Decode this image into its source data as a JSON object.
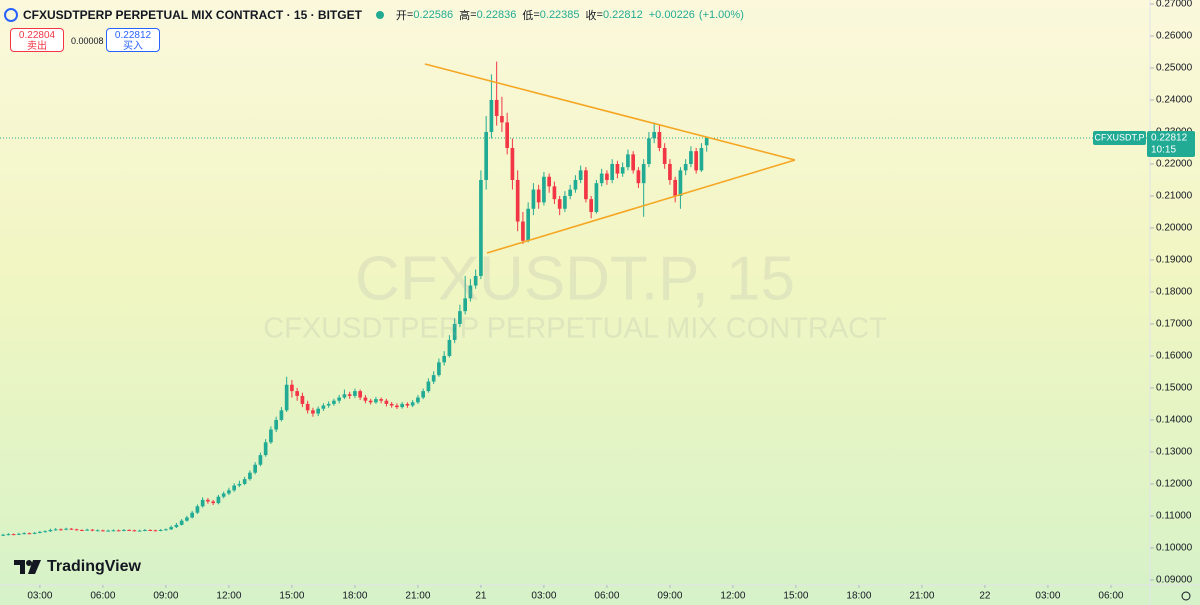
{
  "chart_data": {
    "type": "candlestick",
    "title": "CFXUSDTPERP PERPETUAL MIX CONTRACT · 15 · BITGET",
    "ohlc_header": {
      "open_label": "开",
      "open": 0.22586,
      "high_label": "高",
      "high": 0.22836,
      "low_label": "低",
      "low": 0.22385,
      "close_label": "收",
      "close": 0.22812,
      "change": "+0.00226",
      "change_pct": "(+1.00%)"
    },
    "trade": {
      "sell": 0.22804,
      "sell_label": "卖出",
      "spread": 8e-05,
      "buy": 0.22812,
      "buy_label": "买入"
    },
    "watermark": "CFXUSDT.P, 15",
    "watermark_sub": "CFXUSDTPERP PERPETUAL MIX CONTRACT",
    "price_tag": {
      "symbol": "CFXUSDT.P",
      "price": 0.22812,
      "countdown": "10:15"
    },
    "logo": "TradingView",
    "up_color": "#22ab94",
    "down_color": "#f23645",
    "x": [
      1.25,
      1.5,
      1.75,
      2,
      2.25,
      2.5,
      2.75,
      3,
      3.25,
      3.5,
      3.75,
      4,
      4.25,
      4.5,
      4.75,
      5,
      5.25,
      5.5,
      5.75,
      6,
      6.25,
      6.5,
      6.75,
      7,
      7.25,
      7.5,
      7.75,
      8,
      8.25,
      8.5,
      8.75,
      9,
      9.25,
      9.5,
      9.75,
      10,
      10.25,
      10.5,
      10.75,
      11,
      11.25,
      11.5,
      11.75,
      12,
      12.25,
      12.5,
      12.75,
      13,
      13.25,
      13.5,
      13.75,
      14,
      14.25,
      14.5,
      14.75,
      15,
      15.25,
      15.5,
      15.75,
      16,
      16.25,
      16.5,
      16.75,
      17,
      17.25,
      17.5,
      17.75,
      18,
      18.25,
      18.5,
      18.75,
      19,
      19.25,
      19.5,
      19.75,
      20,
      20.25,
      20.5,
      20.75,
      21,
      21.25,
      21.5,
      21.75,
      22,
      22.25,
      22.5,
      22.75,
      23,
      23.25,
      23.5,
      23.75,
      24,
      24.25,
      24.5,
      24.75,
      25,
      25.25,
      25.5,
      25.75,
      26,
      26.25,
      26.5,
      26.75,
      27,
      27.25,
      27.5,
      27.75,
      28,
      28.25,
      28.5,
      28.75,
      29,
      29.25,
      29.5,
      29.75,
      30,
      30.25,
      30.5,
      30.75,
      31,
      31.25,
      31.5,
      31.75,
      32,
      32.25,
      32.5,
      32.75,
      33,
      33.25,
      33.5,
      33.75,
      34,
      34.25,
      34.5,
      34.75
    ],
    "open": [
      0.104,
      0.1041,
      0.1043,
      0.1042,
      0.1044,
      0.1046,
      0.1045,
      0.1047,
      0.105,
      0.1052,
      0.1056,
      0.1058,
      0.1057,
      0.106,
      0.1058,
      0.1056,
      0.1055,
      0.1057,
      0.1054,
      0.1055,
      0.1053,
      0.1054,
      0.1055,
      0.1054,
      0.1056,
      0.1055,
      0.1053,
      0.1054,
      0.1056,
      0.1055,
      0.1054,
      0.1056,
      0.1058,
      0.1065,
      0.1072,
      0.1085,
      0.1095,
      0.111,
      0.113,
      0.115,
      0.1145,
      0.114,
      0.116,
      0.117,
      0.118,
      0.1195,
      0.12,
      0.1215,
      0.1235,
      0.126,
      0.129,
      0.133,
      0.137,
      0.14,
      0.143,
      0.151,
      0.149,
      0.1475,
      0.145,
      0.143,
      0.142,
      0.1435,
      0.1445,
      0.145,
      0.146,
      0.147,
      0.148,
      0.1475,
      0.149,
      0.147,
      0.146,
      0.1455,
      0.1465,
      0.146,
      0.145,
      0.1445,
      0.144,
      0.145,
      0.1445,
      0.1455,
      0.147,
      0.149,
      0.152,
      0.154,
      0.158,
      0.16,
      0.165,
      0.17,
      0.174,
      0.178,
      0.182,
      0.185,
      0.215,
      0.23,
      0.24,
      0.235,
      0.233,
      0.225,
      0.215,
      0.202,
      0.196,
      0.206,
      0.212,
      0.208,
      0.216,
      0.213,
      0.209,
      0.206,
      0.21,
      0.212,
      0.215,
      0.218,
      0.209,
      0.205,
      0.214,
      0.217,
      0.215,
      0.22,
      0.217,
      0.219,
      0.223,
      0.218,
      0.214,
      0.22,
      0.228,
      0.23,
      0.225,
      0.22,
      0.215,
      0.21,
      0.218,
      0.22,
      0.224,
      0.218,
      0.22586
    ],
    "high": [
      0.1044,
      0.1046,
      0.1045,
      0.1047,
      0.1049,
      0.1048,
      0.105,
      0.1053,
      0.1055,
      0.106,
      0.1062,
      0.1061,
      0.1063,
      0.1062,
      0.106,
      0.1058,
      0.106,
      0.1059,
      0.1058,
      0.1057,
      0.1057,
      0.1058,
      0.1057,
      0.1059,
      0.1058,
      0.1057,
      0.1057,
      0.1059,
      0.1058,
      0.1057,
      0.1059,
      0.1061,
      0.107,
      0.1078,
      0.109,
      0.11,
      0.1116,
      0.1136,
      0.1158,
      0.1156,
      0.115,
      0.1166,
      0.1176,
      0.1188,
      0.1202,
      0.121,
      0.1222,
      0.1242,
      0.1268,
      0.1298,
      0.134,
      0.138,
      0.141,
      0.144,
      0.1535,
      0.1525,
      0.15,
      0.1485,
      0.146,
      0.1438,
      0.1442,
      0.1452,
      0.1458,
      0.1466,
      0.1478,
      0.1495,
      0.1488,
      0.1498,
      0.1495,
      0.1478,
      0.1466,
      0.1472,
      0.147,
      0.1466,
      0.1456,
      0.1452,
      0.1456,
      0.1455,
      0.1462,
      0.1478,
      0.1498,
      0.153,
      0.1552,
      0.1592,
      0.1615,
      0.1665,
      0.1718,
      0.176,
      0.185,
      0.184,
      0.187,
      0.218,
      0.235,
      0.248,
      0.252,
      0.241,
      0.236,
      0.228,
      0.218,
      0.205,
      0.208,
      0.214,
      0.2135,
      0.2175,
      0.217,
      0.2145,
      0.21,
      0.2115,
      0.2135,
      0.2165,
      0.2195,
      0.219,
      0.21,
      0.215,
      0.2185,
      0.218,
      0.2215,
      0.221,
      0.2205,
      0.2245,
      0.224,
      0.219,
      0.2215,
      0.23,
      0.233,
      0.232,
      0.2265,
      0.2215,
      0.216,
      0.219,
      0.2215,
      0.2255,
      0.225,
      0.2265,
      0.22836
    ],
    "low": [
      0.1037,
      0.1039,
      0.104,
      0.104,
      0.1042,
      0.1043,
      0.1043,
      0.1045,
      0.1048,
      0.105,
      0.1054,
      0.1054,
      0.1055,
      0.1056,
      0.1054,
      0.1053,
      0.1053,
      0.1052,
      0.1052,
      0.1051,
      0.1051,
      0.1052,
      0.1052,
      0.1052,
      0.1053,
      0.1051,
      0.1051,
      0.1052,
      0.1053,
      0.1052,
      0.1052,
      0.1054,
      0.1056,
      0.1062,
      0.107,
      0.1082,
      0.1092,
      0.1106,
      0.1126,
      0.1138,
      0.1134,
      0.1136,
      0.1155,
      0.1165,
      0.1175,
      0.119,
      0.1196,
      0.121,
      0.123,
      0.1255,
      0.1285,
      0.1325,
      0.1362,
      0.1395,
      0.1425,
      0.147,
      0.146,
      0.144,
      0.142,
      0.141,
      0.1412,
      0.1428,
      0.1438,
      0.1444,
      0.1452,
      0.1465,
      0.1466,
      0.1468,
      0.1462,
      0.1452,
      0.1448,
      0.145,
      0.1452,
      0.1442,
      0.1438,
      0.1434,
      0.1435,
      0.1438,
      0.144,
      0.145,
      0.1465,
      0.1485,
      0.1512,
      0.1535,
      0.157,
      0.1595,
      0.164,
      0.169,
      0.173,
      0.177,
      0.181,
      0.184,
      0.212,
      0.228,
      0.232,
      0.23,
      0.223,
      0.212,
      0.199,
      0.195,
      0.1955,
      0.204,
      0.206,
      0.207,
      0.211,
      0.2075,
      0.204,
      0.205,
      0.209,
      0.211,
      0.214,
      0.208,
      0.203,
      0.2045,
      0.213,
      0.2135,
      0.214,
      0.2155,
      0.216,
      0.218,
      0.217,
      0.2125,
      0.2035,
      0.219,
      0.2265,
      0.224,
      0.2185,
      0.2135,
      0.208,
      0.206,
      0.2165,
      0.219,
      0.217,
      0.2175,
      0.22385
    ],
    "close": [
      0.1041,
      0.1043,
      0.1042,
      0.1044,
      0.1046,
      0.1045,
      0.1047,
      0.105,
      0.1052,
      0.1056,
      0.1058,
      0.1057,
      0.106,
      0.1058,
      0.1056,
      0.1055,
      0.1057,
      0.1054,
      0.1055,
      0.1053,
      0.1054,
      0.1055,
      0.1054,
      0.1056,
      0.1055,
      0.1053,
      0.1054,
      0.1056,
      0.1055,
      0.1054,
      0.1056,
      0.1058,
      0.1065,
      0.1072,
      0.1085,
      0.1095,
      0.111,
      0.113,
      0.115,
      0.1145,
      0.114,
      0.116,
      0.117,
      0.118,
      0.1195,
      0.12,
      0.1215,
      0.1235,
      0.126,
      0.129,
      0.133,
      0.137,
      0.14,
      0.143,
      0.151,
      0.149,
      0.1475,
      0.145,
      0.143,
      0.142,
      0.1435,
      0.1445,
      0.145,
      0.146,
      0.147,
      0.148,
      0.1475,
      0.149,
      0.147,
      0.146,
      0.1455,
      0.1465,
      0.146,
      0.145,
      0.1445,
      0.144,
      0.145,
      0.1445,
      0.1455,
      0.147,
      0.149,
      0.152,
      0.154,
      0.158,
      0.16,
      0.165,
      0.17,
      0.174,
      0.178,
      0.182,
      0.185,
      0.215,
      0.23,
      0.24,
      0.235,
      0.233,
      0.225,
      0.215,
      0.202,
      0.196,
      0.206,
      0.212,
      0.208,
      0.216,
      0.213,
      0.209,
      0.206,
      0.21,
      0.212,
      0.215,
      0.218,
      0.209,
      0.205,
      0.214,
      0.217,
      0.215,
      0.22,
      0.217,
      0.219,
      0.223,
      0.218,
      0.214,
      0.22,
      0.228,
      0.23,
      0.225,
      0.22,
      0.215,
      0.21,
      0.218,
      0.22,
      0.224,
      0.218,
      0.225,
      0.22812
    ],
    "xlim": [
      1.1,
      55.86
    ],
    "xticks": [
      {
        "value": 3,
        "label": "03:00"
      },
      {
        "value": 6,
        "label": "06:00"
      },
      {
        "value": 9,
        "label": "09:00"
      },
      {
        "value": 12,
        "label": "12:00"
      },
      {
        "value": 15,
        "label": "15:00"
      },
      {
        "value": 18,
        "label": "18:00"
      },
      {
        "value": 21,
        "label": "21:00"
      },
      {
        "value": 24,
        "label": "21"
      },
      {
        "value": 27,
        "label": "03:00"
      },
      {
        "value": 30,
        "label": "06:00"
      },
      {
        "value": 33,
        "label": "09:00"
      },
      {
        "value": 36,
        "label": "12:00"
      },
      {
        "value": 39,
        "label": "15:00"
      },
      {
        "value": 42,
        "label": "18:00"
      },
      {
        "value": 45,
        "label": "21:00"
      },
      {
        "value": 48,
        "label": "22"
      },
      {
        "value": 51,
        "label": "03:00"
      },
      {
        "value": 54,
        "label": "06:00"
      }
    ],
    "ylim": [
      0.0884,
      0.27125
    ],
    "yticks": [
      {
        "value": 0.09,
        "label": "0.09000"
      },
      {
        "value": 0.1,
        "label": "0.10000"
      },
      {
        "value": 0.11,
        "label": "0.11000"
      },
      {
        "value": 0.12,
        "label": "0.12000"
      },
      {
        "value": 0.13,
        "label": "0.13000"
      },
      {
        "value": 0.14,
        "label": "0.14000"
      },
      {
        "value": 0.15,
        "label": "0.15000"
      },
      {
        "value": 0.16,
        "label": "0.16000"
      },
      {
        "value": 0.17,
        "label": "0.17000"
      },
      {
        "value": 0.18,
        "label": "0.18000"
      },
      {
        "value": 0.19,
        "label": "0.19000"
      },
      {
        "value": 0.2,
        "label": "0.20000"
      },
      {
        "value": 0.21,
        "label": "0.21000"
      },
      {
        "value": 0.22,
        "label": "0.22000"
      },
      {
        "value": 0.23,
        "label": "0.23000"
      },
      {
        "value": 0.24,
        "label": "0.24000"
      },
      {
        "value": 0.25,
        "label": "0.25000"
      },
      {
        "value": 0.26,
        "label": "0.26000"
      },
      {
        "value": 0.27,
        "label": "0.27000"
      }
    ]
  }
}
